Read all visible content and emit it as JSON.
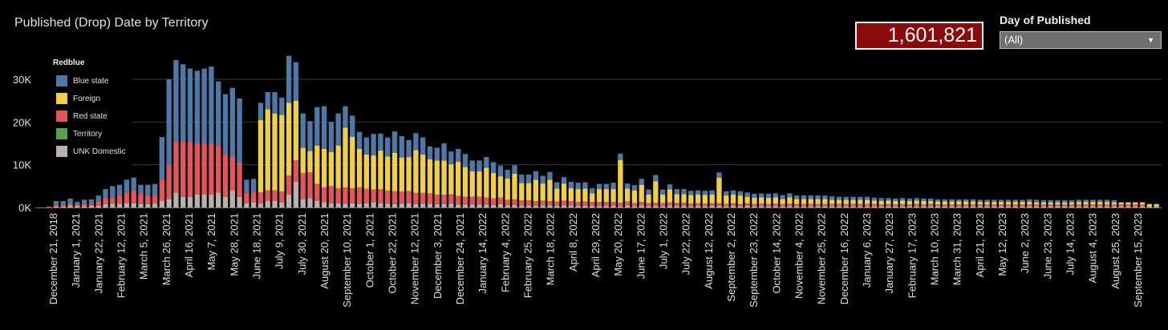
{
  "title": "Published (Drop) Date by Territory",
  "kpi": {
    "value": "1,601,821"
  },
  "filter": {
    "title": "Day of Published",
    "selected": "(All)"
  },
  "legend": {
    "title": "Redblue",
    "items": [
      {
        "label": "Blue state",
        "color": "#4e79a7"
      },
      {
        "label": "Foreign",
        "color": "#f1ce47"
      },
      {
        "label": "Red state",
        "color": "#e15759"
      },
      {
        "label": "Territory",
        "color": "#59a14f"
      },
      {
        "label": "UNK Domestic",
        "color": "#bab0ac"
      }
    ]
  },
  "chart_data": {
    "type": "bar",
    "stacked": true,
    "x_tick_labels": [
      "December 21, 2018",
      "January 1, 2021",
      "January 22, 2021",
      "February 12, 2021",
      "March 5, 2021",
      "March 26, 2021",
      "April 16, 2021",
      "May 7, 2021",
      "May 28, 2021",
      "June 18, 2021",
      "July 9, 2021",
      "July 30, 2021",
      "August 20, 2021",
      "September 10, 2021",
      "October 1, 2021",
      "October 22, 2021",
      "November 12, 2021",
      "December 3, 2021",
      "December 24, 2021",
      "January 14, 2022",
      "February 4, 2022",
      "February 25, 2022",
      "March 18, 2022",
      "April 8, 2022",
      "April 29, 2022",
      "May 20, 2022",
      "June 17, 2022",
      "July 1, 2022",
      "July 22, 2022",
      "August 12, 2022",
      "September 2, 2022",
      "September 23, 2022",
      "October 14, 2022",
      "November 4, 2022",
      "November 25, 2022",
      "December 16, 2022",
      "January 6, 2023",
      "January 27, 2023",
      "February 17, 2023",
      "March 10, 2023",
      "March 31, 2023",
      "April 21, 2023",
      "May 12, 2023",
      "June 2, 2023",
      "June 23, 2023",
      "July 14, 2023",
      "August 4, 2023",
      "August 25, 2023",
      "September 15, 2023"
    ],
    "y_ticks": [
      "0K",
      "10K",
      "20K",
      "30K"
    ],
    "ylim": [
      0,
      40000
    ],
    "series": [
      {
        "name": "UNK Domestic",
        "color": "#bab0ac",
        "values": [
          0,
          50,
          200,
          200,
          500,
          400,
          300,
          400,
          400,
          800,
          900,
          900,
          1000,
          1000,
          900,
          800,
          900,
          1500,
          2000,
          3500,
          2500,
          2500,
          3000,
          3000,
          3000,
          3500,
          2500,
          4000,
          2500,
          1000,
          1200,
          1000,
          1500,
          1500,
          1200,
          3000,
          6000,
          2000,
          2200,
          1500,
          1200,
          1000,
          1000,
          900,
          1000,
          900,
          1000,
          1200,
          1000,
          900,
          800,
          900,
          1000,
          800,
          900,
          900,
          800,
          800,
          900,
          700,
          700,
          700,
          700,
          700,
          600,
          800,
          500,
          600,
          500,
          500,
          400,
          500,
          500,
          400,
          500,
          500,
          400,
          400,
          400,
          400,
          400,
          400,
          300,
          500,
          300,
          500,
          300,
          400,
          300,
          500,
          400,
          400,
          300,
          400,
          300,
          400,
          400,
          300,
          400,
          300,
          400,
          300,
          300,
          300,
          300,
          300,
          300,
          300,
          300,
          300,
          300,
          300,
          300,
          300,
          300,
          300,
          300,
          300,
          300,
          300,
          300,
          300,
          300,
          300,
          300,
          300,
          300,
          300,
          300,
          300,
          300,
          300,
          300,
          300,
          300,
          300,
          300,
          300,
          300,
          300,
          300,
          300,
          300,
          300,
          300,
          300,
          300,
          300,
          300,
          300,
          300,
          300,
          300,
          300,
          300,
          300,
          300,
          300,
          300
        ]
      },
      {
        "name": "Territory",
        "color": "#59a14f",
        "values": [
          0,
          0,
          0,
          0,
          0,
          0,
          0,
          0,
          0,
          0,
          0,
          0,
          0,
          0,
          0,
          0,
          0,
          0,
          0,
          0,
          0,
          0,
          0,
          0,
          0,
          0,
          0,
          0,
          0,
          0,
          0,
          0,
          0,
          0,
          0,
          0,
          0,
          0,
          0,
          0,
          0,
          0,
          0,
          0,
          0,
          0,
          0,
          0,
          0,
          0,
          0,
          0,
          0,
          0,
          0,
          0,
          0,
          0,
          0,
          0,
          0,
          0,
          0,
          0,
          0,
          0,
          0,
          0,
          0,
          0,
          0,
          0,
          0,
          0,
          0,
          0,
          0,
          0,
          0,
          0,
          0,
          0,
          0,
          0,
          0,
          0,
          0,
          0,
          0,
          0,
          0,
          0,
          0,
          0,
          0,
          0,
          0,
          0,
          0,
          0,
          0,
          0,
          0,
          0,
          0,
          0,
          0,
          0,
          0,
          0,
          0,
          0,
          0,
          0,
          0,
          0,
          0,
          0,
          0,
          0,
          0,
          0,
          0,
          0,
          0,
          0,
          0,
          0,
          0,
          0,
          0,
          0,
          0,
          0,
          0,
          0,
          0,
          0,
          0,
          0,
          0,
          0,
          0,
          0,
          0,
          0,
          0,
          0,
          0,
          0,
          0,
          0,
          0,
          0,
          0,
          0,
          0
        ]
      },
      {
        "name": "Red state",
        "color": "#e15759",
        "values": [
          0,
          100,
          400,
          400,
          600,
          400,
          600,
          500,
          1000,
          1500,
          1400,
          2000,
          2500,
          3000,
          2400,
          2000,
          2000,
          5000,
          8000,
          12000,
          13000,
          13000,
          12000,
          12000,
          12000,
          11000,
          10000,
          8000,
          8000,
          2500,
          2500,
          2500,
          2500,
          2500,
          2500,
          4500,
          5000,
          6000,
          6000,
          4000,
          3500,
          4000,
          3500,
          3800,
          3500,
          3800,
          3400,
          3000,
          3300,
          3000,
          3000,
          2800,
          2800,
          2600,
          2500,
          2400,
          2200,
          2200,
          2200,
          2000,
          1800,
          1800,
          1800,
          1600,
          1500,
          1500,
          1300,
          1300,
          1200,
          1200,
          1100,
          1100,
          1000,
          1000,
          1100,
          1000,
          900,
          1000,
          900,
          900,
          900,
          900,
          800,
          900,
          700,
          800,
          700,
          700,
          700,
          700,
          700,
          700,
          600,
          600,
          600,
          600,
          600,
          500,
          600,
          500,
          600,
          500,
          600,
          500,
          600,
          500,
          600,
          500,
          500,
          500,
          500,
          500,
          500,
          500,
          500,
          500,
          500,
          500,
          500,
          400,
          500,
          400,
          500,
          400,
          500,
          400,
          500,
          400,
          400,
          400,
          400,
          400,
          400,
          400,
          400,
          400,
          400,
          400,
          400,
          400,
          400,
          400,
          400,
          400,
          400,
          400,
          400,
          400,
          400,
          400,
          400,
          400,
          400,
          400,
          400,
          400,
          400
        ]
      },
      {
        "name": "Foreign",
        "color": "#f1ce47",
        "values": [
          0,
          0,
          0,
          0,
          0,
          0,
          0,
          0,
          0,
          0,
          0,
          0,
          0,
          0,
          0,
          0,
          0,
          0,
          0,
          0,
          0,
          0,
          0,
          0,
          0,
          0,
          0,
          0,
          0,
          0,
          0,
          17000,
          19000,
          18000,
          18000,
          17000,
          14000,
          6000,
          5000,
          9000,
          9000,
          8000,
          10000,
          14000,
          12000,
          9000,
          8000,
          8000,
          9000,
          8000,
          9000,
          8000,
          8000,
          10000,
          9000,
          8000,
          8000,
          8000,
          7000,
          8000,
          7000,
          6000,
          6000,
          7000,
          6000,
          5000,
          5000,
          6000,
          4000,
          4000,
          5000,
          4000,
          5000,
          3000,
          4000,
          3000,
          3000,
          3000,
          2000,
          3000,
          3000,
          3000,
          10000,
          3000,
          3000,
          4000,
          2000,
          5000,
          2000,
          3000,
          2000,
          2000,
          2000,
          2000,
          2000,
          2000,
          6000,
          2000,
          2000,
          2000,
          1500,
          1500,
          1500,
          1500,
          1500,
          1200,
          1500,
          1200,
          1200,
          1200,
          1200,
          1200,
          1000,
          1000,
          1000,
          1000,
          1000,
          1000,
          800,
          800,
          800,
          800,
          800,
          800,
          800,
          800,
          700,
          700,
          700,
          700,
          700,
          700,
          700,
          600,
          600,
          600,
          600,
          600,
          600,
          600,
          600,
          500,
          500,
          500,
          500,
          500,
          500,
          600,
          600,
          600,
          600,
          600,
          500,
          500,
          500,
          500,
          500,
          500,
          500
        ]
      },
      {
        "name": "Blue state",
        "color": "#4e79a7",
        "values": [
          0,
          100,
          900,
          900,
          1000,
          500,
          900,
          1000,
          1400,
          2000,
          2700,
          2400,
          3000,
          3000,
          2000,
          2500,
          2600,
          10000,
          20000,
          19000,
          18000,
          17000,
          17000,
          17500,
          18000,
          15000,
          14000,
          16000,
          15000,
          3000,
          3000,
          4000,
          4000,
          5000,
          4000,
          11000,
          9000,
          8000,
          7000,
          9000,
          10000,
          7000,
          7500,
          5000,
          5000,
          4000,
          4000,
          5000,
          4000,
          4500,
          5000,
          5000,
          4000,
          4000,
          4000,
          3000,
          3000,
          4000,
          3000,
          3000,
          3000,
          2500,
          2500,
          2500,
          2500,
          2500,
          2000,
          2000,
          2000,
          2000,
          2000,
          1800,
          1800,
          1500,
          1500,
          1500,
          1500,
          1500,
          1200,
          1200,
          1200,
          1500,
          1500,
          1200,
          1200,
          1400,
          1200,
          1500,
          1200,
          1200,
          1200,
          1200,
          1000,
          1000,
          1000,
          1000,
          1200,
          1000,
          1000,
          1000,
          1000,
          900,
          900,
          900,
          900,
          900,
          900,
          800,
          800,
          800,
          800,
          800,
          800,
          700,
          700,
          700,
          700,
          700,
          700,
          700,
          600,
          600,
          600,
          600,
          600,
          600,
          600,
          500,
          500,
          500,
          500,
          500,
          500,
          500,
          500,
          500,
          500,
          500,
          500,
          500,
          600,
          600,
          500,
          500,
          500,
          500,
          500,
          500,
          500,
          500,
          500,
          500,
          500
        ]
      }
    ]
  }
}
